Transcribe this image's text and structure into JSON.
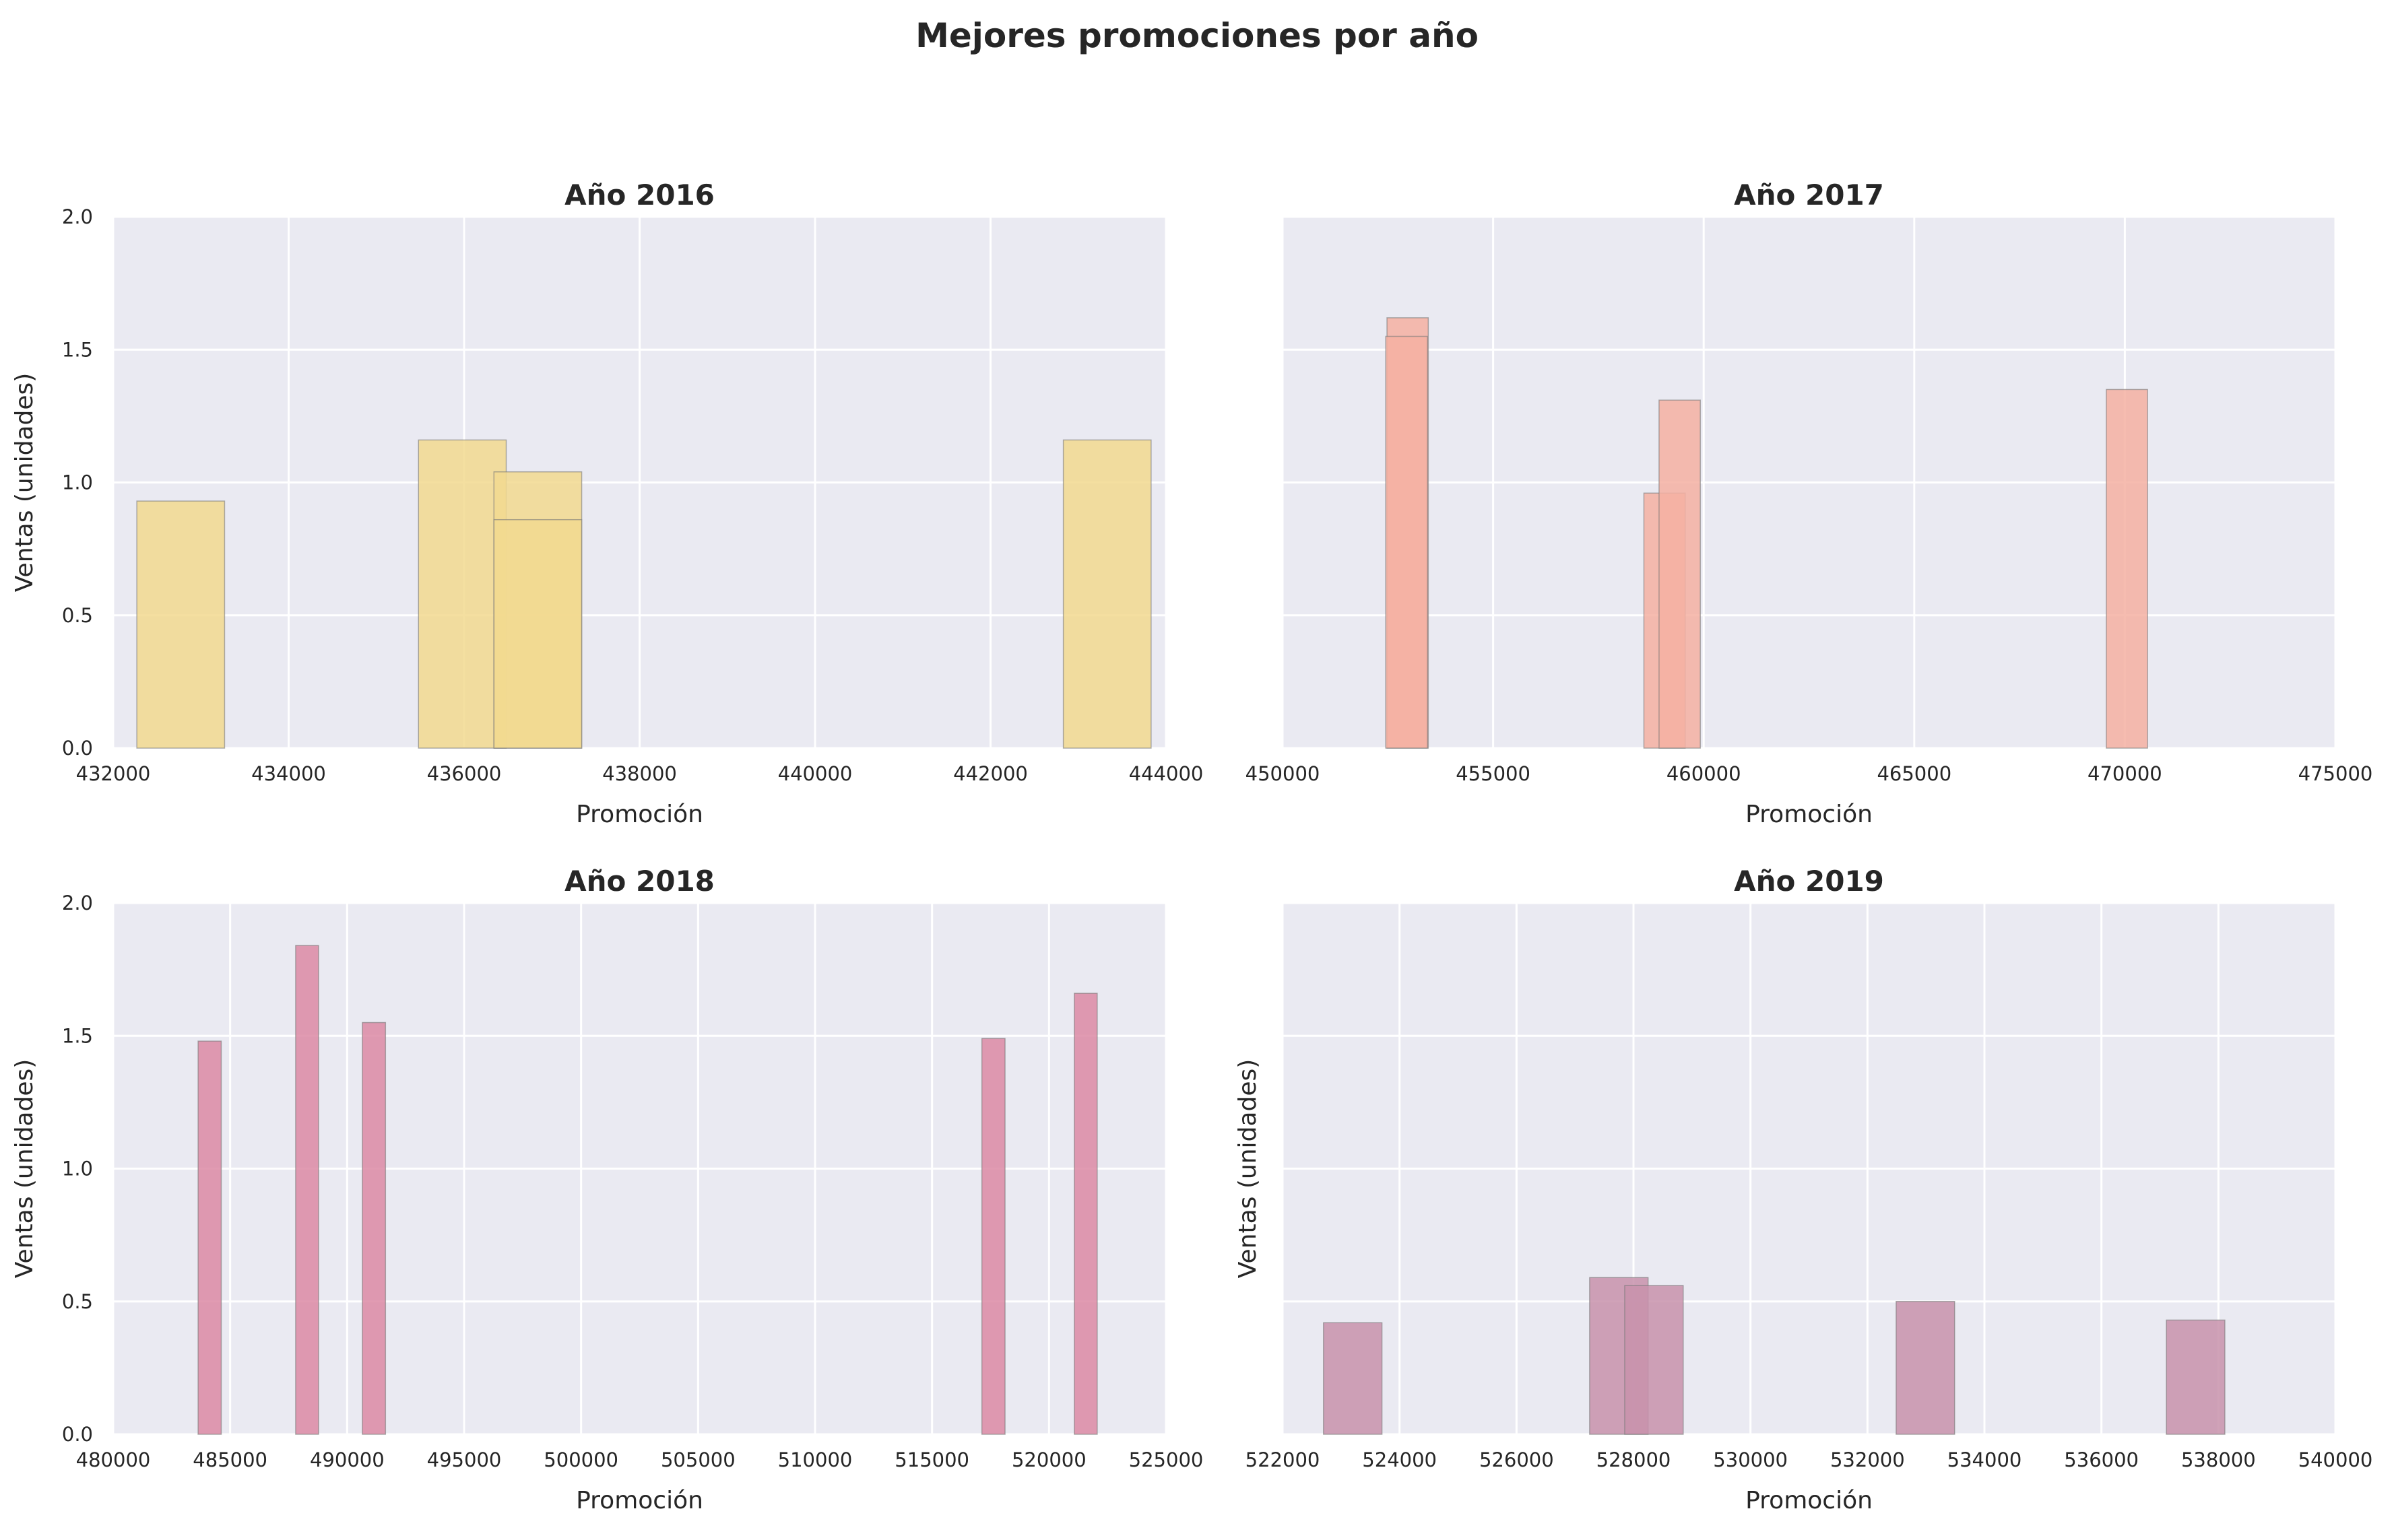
{
  "figure": {
    "title": "Mejores promociones por año"
  },
  "chart_data": [
    {
      "type": "bar",
      "title": "Año 2016",
      "xlabel": "Promoción",
      "ylabel": "Ventas (unidades)",
      "xlim": [
        432000,
        444000
      ],
      "ylim": [
        0,
        2.0
      ],
      "xticks": [
        432000,
        434000,
        436000,
        438000,
        440000,
        442000,
        444000
      ],
      "xtick_labels": [
        "432000",
        "434000",
        "436000",
        "438000",
        "440000",
        "442000",
        "444000"
      ],
      "yticks": [
        0,
        0.5,
        1.0,
        1.5,
        2.0
      ],
      "ytick_labels": [
        "0.0",
        "0.5",
        "1.0",
        "1.5",
        "2.0"
      ],
      "show_ylabel": true,
      "show_yticklabels": true,
      "grid": true,
      "bar_color": "#F2D98F",
      "bars": [
        {
          "x0": 432270,
          "x1": 433270,
          "value": 0.93
        },
        {
          "x0": 435480,
          "x1": 436480,
          "value": 1.16
        },
        {
          "x0": 436340,
          "x1": 437340,
          "value": 1.04
        },
        {
          "x0": 436340,
          "x1": 437340,
          "value": 0.86
        },
        {
          "x0": 442830,
          "x1": 443830,
          "value": 1.16
        }
      ]
    },
    {
      "type": "bar",
      "title": "Año 2017",
      "xlabel": "Promoción",
      "ylabel": "",
      "xlim": [
        450000,
        475000
      ],
      "ylim": [
        0,
        2.0
      ],
      "xticks": [
        450000,
        455000,
        460000,
        465000,
        470000,
        475000
      ],
      "xtick_labels": [
        "450000",
        "455000",
        "460000",
        "465000",
        "470000",
        "475000"
      ],
      "yticks": [
        0,
        0.5,
        1.0,
        1.5,
        2.0
      ],
      "ytick_labels": [
        "0.0",
        "0.5",
        "1.0",
        "1.5",
        "2.0"
      ],
      "show_ylabel": false,
      "show_yticklabels": false,
      "grid": true,
      "bar_color": "#F4B0A2",
      "bars": [
        {
          "x0": 452480,
          "x1": 453460,
          "value": 1.62
        },
        {
          "x0": 452450,
          "x1": 453440,
          "value": 1.55
        },
        {
          "x0": 458580,
          "x1": 459560,
          "value": 0.96
        },
        {
          "x0": 458940,
          "x1": 459920,
          "value": 1.31
        },
        {
          "x0": 469560,
          "x1": 470540,
          "value": 1.35
        }
      ]
    },
    {
      "type": "bar",
      "title": "Año 2018",
      "xlabel": "Promoción",
      "ylabel": "Ventas (unidades)",
      "xlim": [
        480000,
        525000
      ],
      "ylim": [
        0,
        2.0
      ],
      "xticks": [
        480000,
        485000,
        490000,
        495000,
        500000,
        505000,
        510000,
        515000,
        520000,
        525000
      ],
      "xtick_labels": [
        "480000",
        "485000",
        "490000",
        "495000",
        "500000",
        "505000",
        "510000",
        "515000",
        "520000",
        "525000"
      ],
      "yticks": [
        0,
        0.5,
        1.0,
        1.5,
        2.0
      ],
      "ytick_labels": [
        "0.0",
        "0.5",
        "1.0",
        "1.5",
        "2.0"
      ],
      "show_ylabel": true,
      "show_yticklabels": true,
      "grid": true,
      "bar_color": "#DC89A5",
      "bars": [
        {
          "x0": 483630,
          "x1": 484620,
          "value": 1.48
        },
        {
          "x0": 487800,
          "x1": 488780,
          "value": 1.84
        },
        {
          "x0": 490650,
          "x1": 491640,
          "value": 1.55
        },
        {
          "x0": 517130,
          "x1": 518120,
          "value": 1.49
        },
        {
          "x0": 521080,
          "x1": 522060,
          "value": 1.66
        }
      ]
    },
    {
      "type": "bar",
      "title": "Año 2019",
      "xlabel": "Promoción",
      "ylabel": "Ventas (unidades)",
      "xlim": [
        522000,
        540000
      ],
      "ylim": [
        0,
        2.0
      ],
      "xticks": [
        522000,
        524000,
        526000,
        528000,
        530000,
        532000,
        534000,
        536000,
        538000,
        540000
      ],
      "xtick_labels": [
        "522000",
        "524000",
        "526000",
        "528000",
        "530000",
        "532000",
        "534000",
        "536000",
        "538000",
        "540000"
      ],
      "yticks": [
        0,
        0.5,
        1.0,
        1.5,
        2.0
      ],
      "ytick_labels": [
        "0.0",
        "0.5",
        "1.0",
        "1.5",
        "2.0"
      ],
      "show_ylabel": true,
      "show_yticklabels": false,
      "grid": true,
      "bar_color": "#C892AB",
      "bars": [
        {
          "x0": 522700,
          "x1": 523700,
          "value": 0.42
        },
        {
          "x0": 527250,
          "x1": 528250,
          "value": 0.59
        },
        {
          "x0": 527850,
          "x1": 528850,
          "value": 0.56
        },
        {
          "x0": 532490,
          "x1": 533490,
          "value": 0.5
        },
        {
          "x0": 537110,
          "x1": 538110,
          "value": 0.43
        }
      ]
    }
  ]
}
